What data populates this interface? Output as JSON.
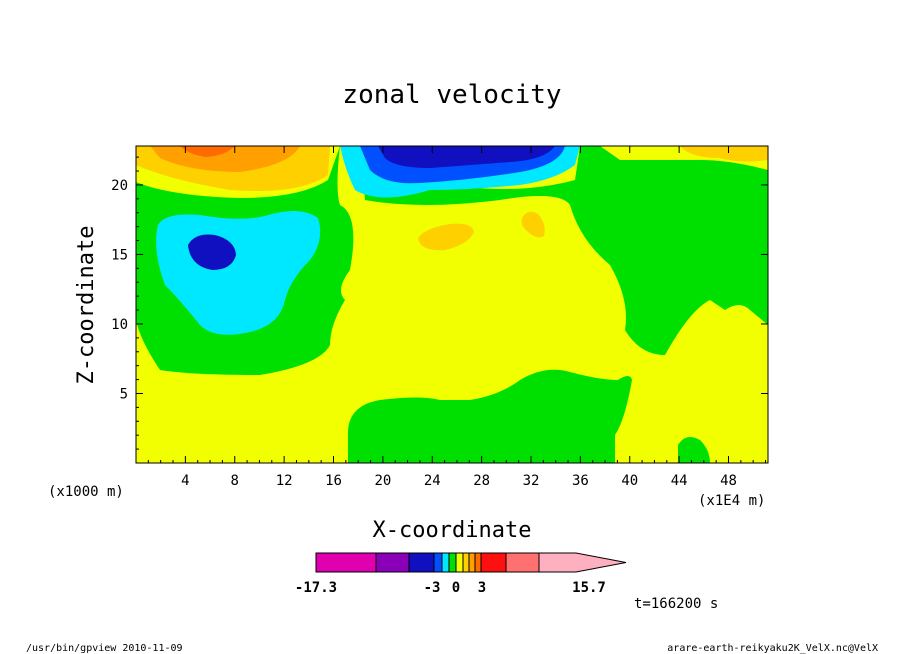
{
  "chart_data": {
    "type": "heatmap",
    "subtype": "filled-contour",
    "title": "zonal velocity",
    "xlabel": "X-coordinate",
    "ylabel": "Z-coordinate",
    "x_units_left": "(x1000 m)",
    "x_units_right": "(x1E4 m)",
    "xlim": [
      0,
      51.2
    ],
    "ylim": [
      0,
      22.8
    ],
    "x_ticks": [
      4,
      8,
      12,
      16,
      20,
      24,
      28,
      32,
      36,
      40,
      44,
      48
    ],
    "y_ticks": [
      5,
      10,
      15,
      20
    ],
    "contour_levels": {
      "colors": [
        "#e000b0",
        "#8a00b8",
        "#1010c0",
        "#0050ff",
        "#00e8ff",
        "#00e000",
        "#f2ff00",
        "#ffd000",
        "#ffa000",
        "#ff6a00",
        "#ff1010",
        "#ff7070",
        "#ffb0c0"
      ],
      "tick_labels": [
        {
          "value": -17.3,
          "label": "-17.3"
        },
        {
          "value": -3,
          "label": "-3"
        },
        {
          "value": 0,
          "label": "0"
        },
        {
          "value": 3,
          "label": "3"
        },
        {
          "value": 15.7,
          "label": "15.7"
        }
      ]
    },
    "regions": [
      {
        "level": "positive",
        "color": "#f2ff00",
        "desc": "background"
      },
      {
        "level": "weak-negative",
        "color": "#00e000"
      },
      {
        "level": "negative",
        "color": "#00e8ff"
      },
      {
        "level": "strong-negative",
        "color": "#1010c0"
      },
      {
        "level": "positive-max",
        "color": "#ffa000"
      }
    ],
    "time_label": "t=166200 s"
  },
  "footer": {
    "left": "/usr/bin/gpview   2010-11-09",
    "right": "arare-earth-reikyaku2K_VelX.nc@VelX"
  }
}
